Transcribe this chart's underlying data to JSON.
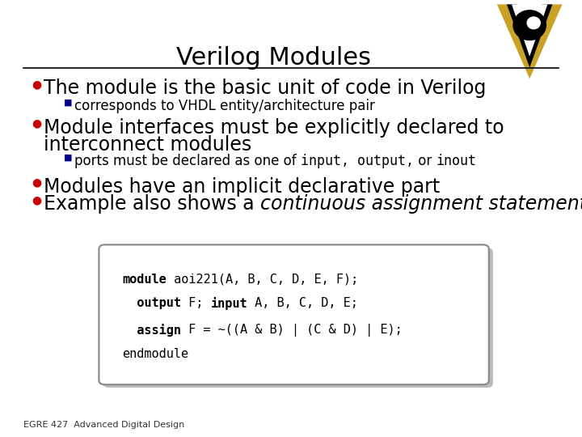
{
  "title": "Verilog Modules",
  "bg_color": "#ffffff",
  "title_color": "#000000",
  "separator_color": "#000000",
  "bullet_color": "#cc0000",
  "sub_bullet_color": "#00008b",
  "bullet1": "The module is the basic unit of code in Verilog",
  "sub_bullet1": "corresponds to VHDL entity/architecture pair",
  "bullet2a": "Module interfaces must be explicitly declared to",
  "bullet2b": "interconnect modules",
  "sub_bullet2_prefix": "ports must be declared as one of ",
  "sub_bullet2_code": "input, output,",
  "sub_bullet2_mid": " or ",
  "sub_bullet2_code2": "inout",
  "bullet3": "Modules have an implicit declarative part",
  "bullet4_prefix": "Example also shows a ",
  "bullet4_italic": "continuous assignment statement",
  "footer": "EGRE 427  Advanced Digital Design",
  "title_fontsize": 22,
  "main_fontsize": 17,
  "sub_fontsize": 12,
  "code_fontsize": 11,
  "footer_fontsize": 8
}
